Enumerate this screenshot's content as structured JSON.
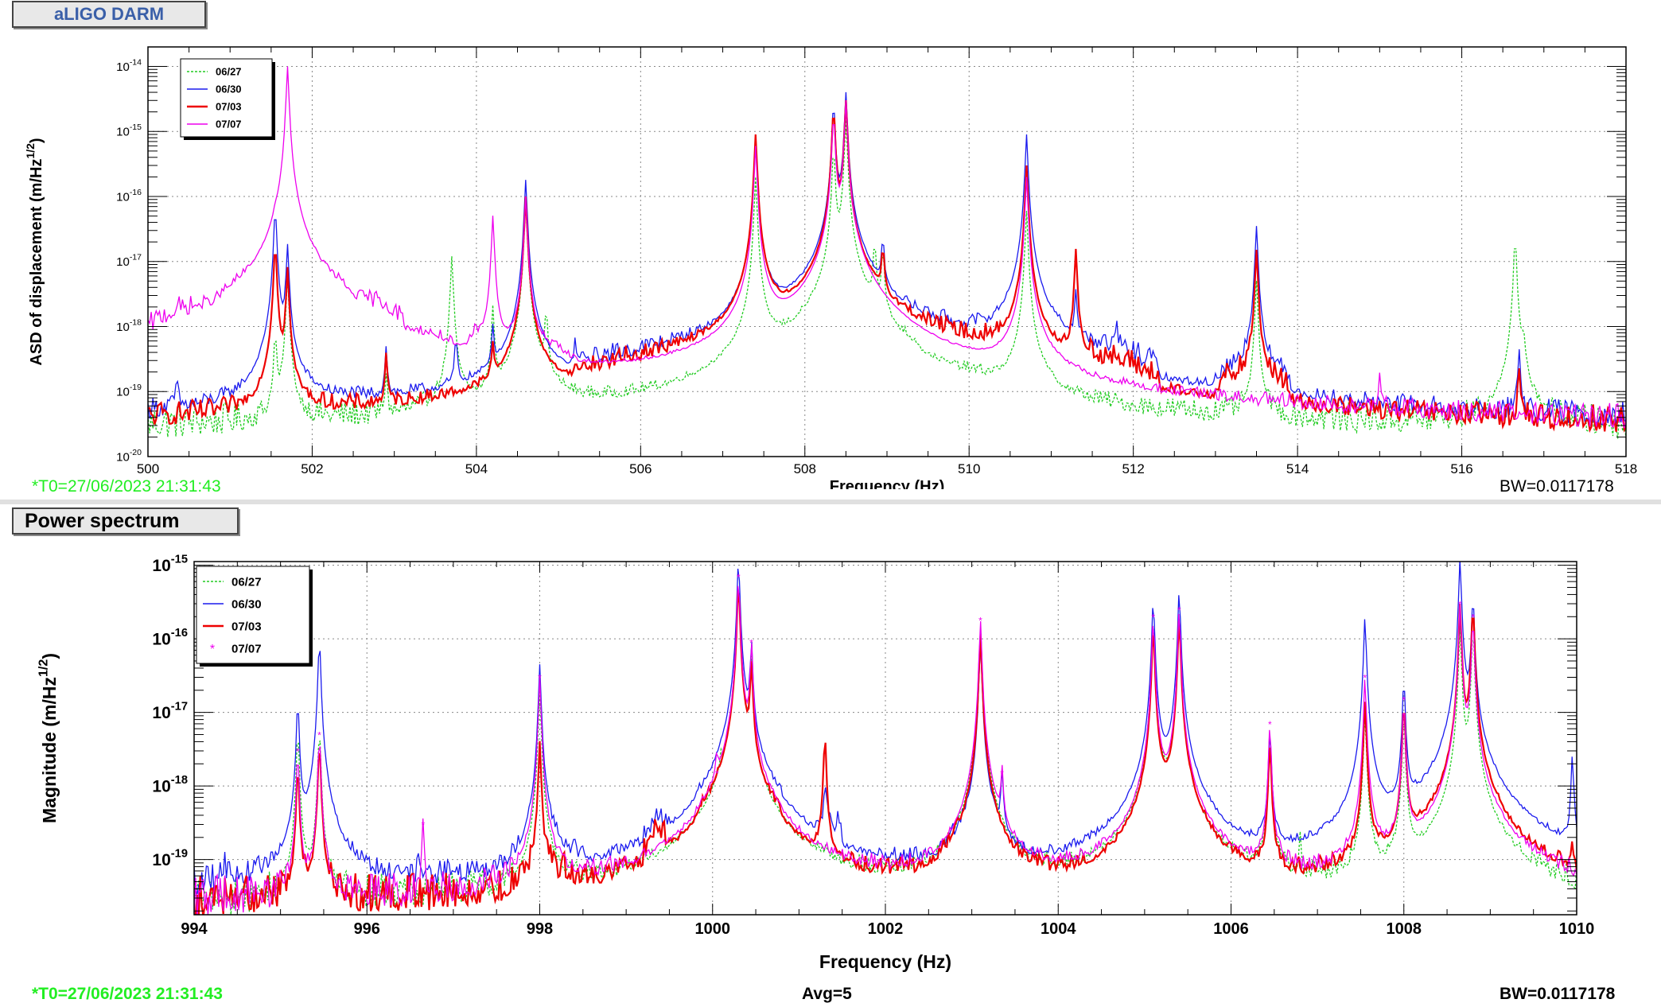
{
  "top_panel": {
    "title": "aLIGO DARM",
    "t0": "*T0=27/06/2023 21:31:43",
    "bw": "BW=0.0117178"
  },
  "bottom_panel": {
    "title": "Power spectrum",
    "t0": "*T0=27/06/2023 21:31:43",
    "avg": "Avg=5",
    "bw": "BW=0.0117178"
  },
  "colors": {
    "green": "#22cc22",
    "blue": "#1a1aee",
    "red": "#ee0000",
    "magenta": "#ee00ee"
  },
  "chart_data": [
    {
      "type": "line",
      "xlabel": "Frequency (Hz)",
      "ylabel": "ASD of displacement (m/Hz^1/2)",
      "xlim": [
        500,
        518
      ],
      "ylim_exp": [
        -20,
        -13.7
      ],
      "yscale": "log",
      "grid": true,
      "legend_position": "top-left",
      "x_ticks": [
        "500",
        "502",
        "504",
        "506",
        "508",
        "510",
        "512",
        "514",
        "516",
        "518"
      ],
      "y_ticks": [
        {
          "base": "10",
          "exp": "-20",
          "value": 1e-20
        },
        {
          "base": "10",
          "exp": "-19",
          "value": 1e-19
        },
        {
          "base": "10",
          "exp": "-18",
          "value": 1e-18
        },
        {
          "base": "10",
          "exp": "-17",
          "value": 1e-17
        },
        {
          "base": "10",
          "exp": "-16",
          "value": 1e-16
        },
        {
          "base": "10",
          "exp": "-15",
          "value": 1e-15
        },
        {
          "base": "10",
          "exp": "-14",
          "value": 1e-14
        }
      ],
      "series": [
        {
          "name": "06/27",
          "color": "#22cc22",
          "style": "dotted",
          "floor": 2e-20,
          "humps": [
            [
              507.6,
              509.4,
              2e-19
            ],
            [
              509.4,
              510.6,
              4e-20
            ]
          ],
          "peaks": [
            [
              501.55,
              8e-19
            ],
            [
              501.7,
              6e-18
            ],
            [
              502.9,
              1.5e-19
            ],
            [
              503.7,
              1.2e-17
            ],
            [
              504.2,
              2e-18
            ],
            [
              504.6,
              8e-17
            ],
            [
              504.85,
              1.8e-18
            ],
            [
              507.4,
              2e-16
            ],
            [
              508.35,
              6e-16
            ],
            [
              508.5,
              1.5e-15
            ],
            [
              508.85,
              2e-17
            ],
            [
              508.95,
              1.5e-17
            ],
            [
              510.7,
              6e-17
            ],
            [
              513.5,
              5e-18
            ],
            [
              516.65,
              2.5e-17
            ],
            [
              516.75,
              6e-19
            ]
          ]
        },
        {
          "name": "06/30",
          "color": "#1a1aee",
          "style": "solid",
          "floor": 2e-20,
          "humps": [
            [
              505.2,
              507.3,
              1.5e-19
            ],
            [
              507.5,
              510.8,
              3.5e-19
            ],
            [
              510.8,
              512.3,
              2e-19
            ],
            [
              513,
              513.9,
              1.2e-19
            ]
          ],
          "peaks": [
            [
              500.35,
              1.1e-19
            ],
            [
              501.55,
              7e-17
            ],
            [
              501.7,
              1.8e-17
            ],
            [
              502.9,
              4e-19
            ],
            [
              503.75,
              6e-19
            ],
            [
              504.2,
              8e-19
            ],
            [
              504.6,
              1.8e-16
            ],
            [
              505.2,
              3e-19
            ],
            [
              507.4,
              9e-16
            ],
            [
              508.35,
              3e-15
            ],
            [
              508.5,
              4e-15
            ],
            [
              508.95,
              2e-17
            ],
            [
              509.5,
              5e-19
            ],
            [
              510.7,
              9e-16
            ],
            [
              511.3,
              3e-18
            ],
            [
              511.8,
              7e-19
            ],
            [
              513.5,
              3.5e-17
            ],
            [
              516.7,
              4e-19
            ]
          ]
        },
        {
          "name": "07/03",
          "color": "#ee0000",
          "style": "solid",
          "floor": 1.8e-20,
          "humps": [
            [
              505.2,
              507.3,
              1.2e-19
            ],
            [
              507.5,
              510.8,
              3e-19
            ],
            [
              510.8,
              512.3,
              1.5e-19
            ],
            [
              513,
              513.9,
              1e-19
            ]
          ],
          "peaks": [
            [
              501.55,
              2e-17
            ],
            [
              501.7,
              8e-18
            ],
            [
              502.9,
              3e-19
            ],
            [
              504.2,
              4e-19
            ],
            [
              504.6,
              1e-16
            ],
            [
              507.4,
              9e-16
            ],
            [
              508.35,
              2.5e-15
            ],
            [
              508.5,
              3e-15
            ],
            [
              508.95,
              1.5e-17
            ],
            [
              510.7,
              3e-16
            ],
            [
              511.3,
              1.5e-17
            ],
            [
              513.5,
              1.5e-17
            ],
            [
              516.7,
              2e-19
            ]
          ]
        },
        {
          "name": "07/07",
          "color": "#ee00ee",
          "style": "solid",
          "floor": 1.8e-20,
          "humps": [
            [
              500,
              500.8,
              7e-19
            ],
            [
              500.8,
              501.4,
              8e-19
            ],
            [
              501.9,
              502.5,
              1e-18
            ],
            [
              502.5,
              503.1,
              8e-19
            ],
            [
              503.1,
              503.7,
              1.5e-19
            ],
            [
              503.9,
              504.3,
              2.5e-19
            ],
            [
              504.3,
              505.2,
              1e-19
            ]
          ],
          "peaks": [
            [
              501.55,
              1.2e-17
            ],
            [
              501.7,
              1e-14
            ],
            [
              502.9,
              4e-19
            ],
            [
              504.2,
              5e-17
            ],
            [
              504.6,
              1e-16
            ],
            [
              507.4,
              6e-16
            ],
            [
              508.35,
              2e-15
            ],
            [
              508.5,
              3e-15
            ],
            [
              510.7,
              2e-16
            ],
            [
              515,
              1.5e-19
            ]
          ]
        }
      ]
    },
    {
      "type": "line",
      "xlabel": "Frequency (Hz)",
      "ylabel": "Magnitude (m/Hz^1/2)",
      "xlim": [
        994,
        1010
      ],
      "ylim_exp": [
        -19.75,
        -14.95
      ],
      "yscale": "log",
      "grid": true,
      "legend_position": "top-left",
      "x_ticks": [
        "994",
        "996",
        "998",
        "1000",
        "1002",
        "1004",
        "1006",
        "1008",
        "1010"
      ],
      "y_ticks": [
        {
          "base": "10",
          "exp": "-19",
          "value": 1e-19
        },
        {
          "base": "10",
          "exp": "-18",
          "value": 1e-18
        },
        {
          "base": "10",
          "exp": "-17",
          "value": 1e-17
        },
        {
          "base": "10",
          "exp": "-16",
          "value": 1e-16
        },
        {
          "base": "10",
          "exp": "-15",
          "value": 1e-15
        }
      ],
      "series": [
        {
          "name": "06/27",
          "color": "#22cc22",
          "style": "dotted",
          "floor": 2e-20,
          "humps": [],
          "peaks": [
            [
              995.2,
              6e-18
            ],
            [
              995.45,
              6e-18
            ],
            [
              998,
              2e-17
            ],
            [
              1000.1,
              1.2e-18
            ],
            [
              1000.3,
              6e-16
            ],
            [
              1000.45,
              6e-17
            ],
            [
              1003.1,
              1.5e-16
            ],
            [
              1005.1,
              2e-16
            ],
            [
              1005.4,
              2e-16
            ],
            [
              1006.45,
              6e-18
            ],
            [
              1006.8,
              1.5e-19
            ],
            [
              1007.55,
              1e-17
            ],
            [
              1008.0,
              1e-17
            ],
            [
              1008.65,
              1.5e-16
            ],
            [
              1008.8,
              1.5e-16
            ]
          ]
        },
        {
          "name": "06/30",
          "color": "#1a1aee",
          "style": "solid",
          "floor": 2.5e-20,
          "humps": [
            [
              997.6,
              998.6,
              5e-20
            ],
            [
              999.2,
              999.5,
              1.2e-19
            ],
            [
              999.8,
              1000.8,
              2e-19
            ],
            [
              1001.2,
              1001.5,
              1.5e-19
            ],
            [
              1002.6,
              1003.4,
              7e-20
            ],
            [
              1004.8,
              1005.8,
              8e-20
            ],
            [
              1008.1,
              1009.1,
              1.5e-19
            ]
          ],
          "peaks": [
            [
              994.35,
              5e-20
            ],
            [
              994.4,
              6e-20
            ],
            [
              995.2,
              1.5e-17
            ],
            [
              995.45,
              1e-16
            ],
            [
              996.6,
              5e-20
            ],
            [
              998,
              4.5e-17
            ],
            [
              1000.3,
              1.2e-15
            ],
            [
              1000.45,
              9e-17
            ],
            [
              1001.3,
              6e-19
            ],
            [
              1003.1,
              9e-17
            ],
            [
              1003.35,
              1.5e-18
            ],
            [
              1005.1,
              3.5e-16
            ],
            [
              1005.4,
              4.5e-16
            ],
            [
              1006.45,
              6e-18
            ],
            [
              1007.55,
              2e-16
            ],
            [
              1008.0,
              3e-17
            ],
            [
              1008.65,
              1.2e-15
            ],
            [
              1008.8,
              4e-16
            ],
            [
              1009.95,
              2.5e-18
            ]
          ]
        },
        {
          "name": "07/03",
          "color": "#ee0000",
          "style": "solid",
          "floor": 2e-20,
          "humps": [
            [
              997.6,
              998.6,
              4e-20
            ],
            [
              999.2,
              999.5,
              1e-19
            ],
            [
              999.8,
              1000.8,
              1.5e-19
            ],
            [
              1002.6,
              1003.4,
              5e-20
            ],
            [
              1004.8,
              1005.8,
              6e-20
            ],
            [
              1008.1,
              1009.1,
              1e-19
            ]
          ],
          "peaks": [
            [
              995.2,
              2e-18
            ],
            [
              995.45,
              4e-18
            ],
            [
              998,
              4e-18
            ],
            [
              1000.3,
              6e-16
            ],
            [
              1000.45,
              5e-17
            ],
            [
              1001.3,
              5e-18
            ],
            [
              1003.1,
              1.2e-16
            ],
            [
              1005.1,
              1.5e-16
            ],
            [
              1005.4,
              2e-16
            ],
            [
              1006.45,
              4e-18
            ],
            [
              1007.55,
              1.5e-17
            ],
            [
              1008.0,
              1.5e-17
            ],
            [
              1008.65,
              3e-16
            ],
            [
              1008.8,
              3e-16
            ],
            [
              1009.95,
              1e-19
            ]
          ]
        },
        {
          "name": "07/07",
          "color": "#ee00ee",
          "style": "marker",
          "floor": 2e-20,
          "humps": [
            [
              999.8,
              1000.8,
              1e-19
            ],
            [
              1004.8,
              1005.8,
              5e-20
            ]
          ],
          "peaks": [
            [
              995.2,
              3e-18
            ],
            [
              995.45,
              5e-18
            ],
            [
              996.65,
              3e-19
            ],
            [
              998,
              3e-17
            ],
            [
              1000.05,
              1.5e-18
            ],
            [
              1000.3,
              7e-16
            ],
            [
              1000.45,
              9e-17
            ],
            [
              1003.1,
              1.8e-16
            ],
            [
              1003.35,
              1.5e-18
            ],
            [
              1005.1,
              2e-16
            ],
            [
              1005.4,
              2.5e-16
            ],
            [
              1006.45,
              7e-18
            ],
            [
              1007.55,
              3e-17
            ],
            [
              1008.0,
              1.5e-17
            ],
            [
              1008.65,
              3e-16
            ],
            [
              1008.8,
              2e-16
            ]
          ]
        }
      ]
    }
  ]
}
